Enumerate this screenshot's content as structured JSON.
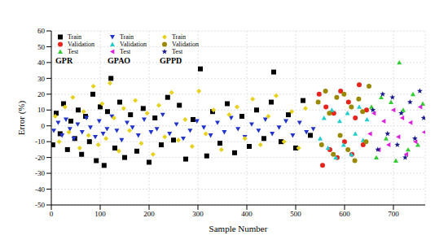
{
  "chart_data": {
    "type": "scatter",
    "x_label": "Sample Number",
    "y_label": "Error (%)",
    "xlim": [
      0,
      765
    ],
    "xticks": [
      0,
      100,
      200,
      300,
      400,
      500,
      600,
      700
    ],
    "ylim": [
      -50,
      60
    ],
    "yticks": [
      -50,
      -40,
      -30,
      -20,
      -10,
      0,
      10,
      20,
      30,
      40,
      50,
      60
    ],
    "grid": true,
    "legend": "upper left",
    "annotations": [
      "GPR",
      "GPAO",
      "GPPD"
    ],
    "series": [
      {
        "name": "Train",
        "color": "#000000",
        "marker": "square",
        "x": [
          3,
          10,
          18,
          25,
          33,
          40,
          48,
          55,
          62,
          70,
          78,
          85,
          92,
          100,
          108,
          115,
          122,
          130,
          140,
          150,
          162,
          175,
          188,
          200,
          212,
          225,
          238,
          250,
          262,
          275,
          290,
          305,
          318,
          330,
          345,
          360,
          375,
          390,
          405,
          420,
          435,
          450,
          455,
          470,
          485,
          500,
          515,
          530
        ],
        "values": [
          -12,
          8,
          -5,
          14,
          -15,
          3,
          -8,
          10,
          -18,
          6,
          -10,
          20,
          -22,
          12,
          -25,
          9,
          30,
          -14,
          15,
          -20,
          7,
          -16,
          11,
          -23,
          5,
          -12,
          18,
          -9,
          13,
          -21,
          4,
          36,
          -19,
          9,
          -11,
          14,
          -17,
          6,
          -13,
          10,
          -8,
          15,
          34,
          -10,
          7,
          -14,
          16,
          -6
        ]
      },
      {
        "name": "Validation",
        "color": "#e8231b",
        "marker": "circle",
        "x": [
          548,
          555,
          562,
          570,
          578,
          585,
          592,
          600,
          608,
          615,
          622,
          630,
          638,
          645
        ],
        "values": [
          20,
          -25,
          12,
          -15,
          8,
          -20,
          22,
          -10,
          15,
          -18,
          5,
          26,
          -12,
          10
        ]
      },
      {
        "name": "Test",
        "color": "#33cc33",
        "marker": "triangle",
        "x": [
          655,
          665,
          675,
          685,
          695,
          705,
          712,
          720,
          730,
          740,
          750,
          760
        ],
        "values": [
          12,
          -20,
          18,
          -8,
          15,
          -22,
          40,
          10,
          -15,
          20,
          -12,
          14
        ]
      },
      {
        "name": "Train",
        "color": "#2233cc",
        "marker": "triangle_down",
        "x": [
          5,
          14,
          22,
          30,
          38,
          46,
          54,
          63,
          72,
          80,
          90,
          98,
          106,
          114,
          124,
          134,
          144,
          155,
          166,
          178,
          190,
          204,
          216,
          228,
          242,
          256,
          270,
          284,
          298,
          312,
          326,
          340,
          354,
          368,
          382,
          396,
          410,
          424,
          438,
          452,
          466,
          480,
          494,
          508,
          522,
          536
        ],
        "values": [
          -3,
          2,
          -6,
          4,
          -2,
          -8,
          1,
          -4,
          5,
          -1,
          -7,
          3,
          -5,
          -2,
          6,
          -3,
          -9,
          2,
          -1,
          -6,
          4,
          -4,
          -2,
          7,
          -5,
          1,
          -8,
          -3,
          3,
          -1,
          -6,
          2,
          -4,
          5,
          -2,
          -7,
          1,
          -3,
          4,
          -5,
          -1,
          3,
          -6,
          2,
          -4,
          -2
        ]
      },
      {
        "name": "Validation",
        "color": "#22cccc",
        "marker": "triangle",
        "x": [
          550,
          558,
          566,
          574,
          582,
          590,
          598,
          606,
          614,
          622,
          630,
          638,
          646
        ],
        "values": [
          -8,
          5,
          -14,
          10,
          -20,
          3,
          -12,
          8,
          -18,
          -5,
          12,
          -9,
          4
        ]
      },
      {
        "name": "Test",
        "color": "#dd22dd",
        "marker": "triangle_left",
        "x": [
          652,
          660,
          670,
          680,
          690,
          700,
          710,
          718,
          726,
          735,
          745,
          755,
          763
        ],
        "values": [
          -5,
          8,
          -15,
          3,
          -12,
          10,
          -7,
          5,
          -18,
          2,
          -10,
          12,
          -4
        ]
      },
      {
        "name": "Train",
        "color": "#e6d21e",
        "marker": "diamond",
        "x": [
          8,
          16,
          28,
          36,
          44,
          58,
          66,
          76,
          86,
          96,
          104,
          112,
          120,
          128,
          138,
          148,
          160,
          172,
          184,
          196,
          208,
          220,
          232,
          246,
          260,
          274,
          288,
          302,
          316,
          332,
          348,
          364,
          380,
          396,
          412,
          428,
          444,
          460,
          476,
          492,
          506,
          520
        ],
        "values": [
          6,
          -10,
          12,
          -4,
          18,
          -14,
          9,
          -6,
          25,
          -12,
          14,
          -8,
          27,
          5,
          -16,
          11,
          -3,
          16,
          -11,
          8,
          -18,
          13,
          -7,
          21,
          -9,
          4,
          -13,
          22,
          -5,
          10,
          -15,
          7,
          12,
          -8,
          17,
          -12,
          6,
          19,
          -10,
          9,
          -14,
          11
        ]
      },
      {
        "name": "Validation",
        "color": "#998800",
        "marker": "circle",
        "x": [
          546,
          553,
          561,
          569,
          577,
          584,
          591,
          599,
          607,
          614,
          621,
          629,
          637,
          644,
          650
        ],
        "values": [
          15,
          -12,
          22,
          8,
          -18,
          18,
          -6,
          20,
          -15,
          12,
          -22,
          17,
          9,
          -10,
          25
        ]
      },
      {
        "name": "Test",
        "color": "#1a1a8c",
        "marker": "star",
        "x": [
          658,
          668,
          678,
          688,
          698,
          708,
          716,
          724,
          734,
          744,
          754,
          762
        ],
        "values": [
          10,
          -15,
          20,
          -5,
          18,
          -12,
          8,
          -20,
          15,
          -8,
          22,
          5
        ]
      }
    ]
  }
}
